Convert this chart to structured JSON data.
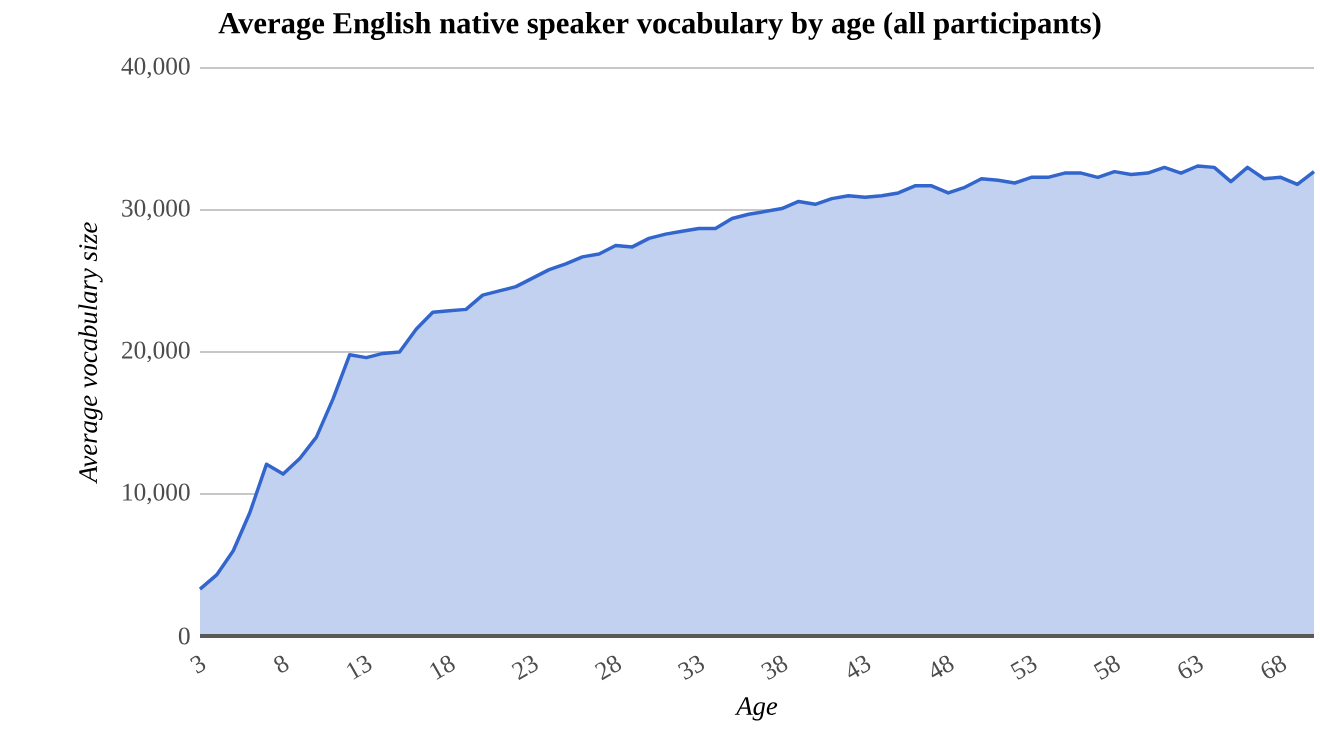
{
  "chart_data": {
    "type": "area",
    "title": "Average English native speaker vocabulary by age (all participants)",
    "xlabel": "Age",
    "ylabel": "Average vocabulary size",
    "x": [
      3,
      4,
      5,
      6,
      7,
      8,
      9,
      10,
      11,
      12,
      13,
      14,
      15,
      16,
      17,
      18,
      19,
      20,
      21,
      22,
      23,
      24,
      25,
      26,
      27,
      28,
      29,
      30,
      31,
      32,
      33,
      34,
      35,
      36,
      37,
      38,
      39,
      40,
      41,
      42,
      43,
      44,
      45,
      46,
      47,
      48,
      49,
      50,
      51,
      52,
      53,
      54,
      55,
      56,
      57,
      58,
      59,
      60,
      61,
      62,
      63,
      64,
      65,
      66,
      67,
      68,
      69,
      70
    ],
    "series": [
      {
        "color": "#3366cc",
        "values": [
          3300,
          4300,
          6000,
          8700,
          12100,
          11400,
          12500,
          14000,
          16700,
          19800,
          19600,
          19900,
          20000,
          21600,
          22800,
          22900,
          23000,
          24000,
          24300,
          24600,
          25200,
          25800,
          26200,
          26700,
          26900,
          27500,
          27400,
          28000,
          28300,
          28500,
          28700,
          28700,
          29400,
          29700,
          29900,
          30100,
          30600,
          30400,
          30800,
          31000,
          30900,
          31000,
          31200,
          31700,
          31700,
          31200,
          31600,
          32200,
          32100,
          31900,
          32300,
          32300,
          32600,
          32600,
          32300,
          32700,
          32500,
          32600,
          33000,
          32600,
          33100,
          33000,
          32000,
          33000,
          32200,
          32300,
          31800,
          32700
        ]
      }
    ],
    "xlim": [
      3,
      70
    ],
    "ylim": [
      0,
      40000
    ],
    "xticks": [
      3,
      8,
      13,
      18,
      23,
      28,
      33,
      38,
      43,
      48,
      53,
      58,
      63,
      68
    ],
    "yticks": [
      0,
      {
        "value": 10000,
        "label": "10,000"
      },
      {
        "value": 20000,
        "label": "20,000"
      },
      {
        "value": 30000,
        "label": "30,000"
      },
      {
        "value": 40000,
        "label": "40,000"
      }
    ],
    "grid": "y"
  }
}
